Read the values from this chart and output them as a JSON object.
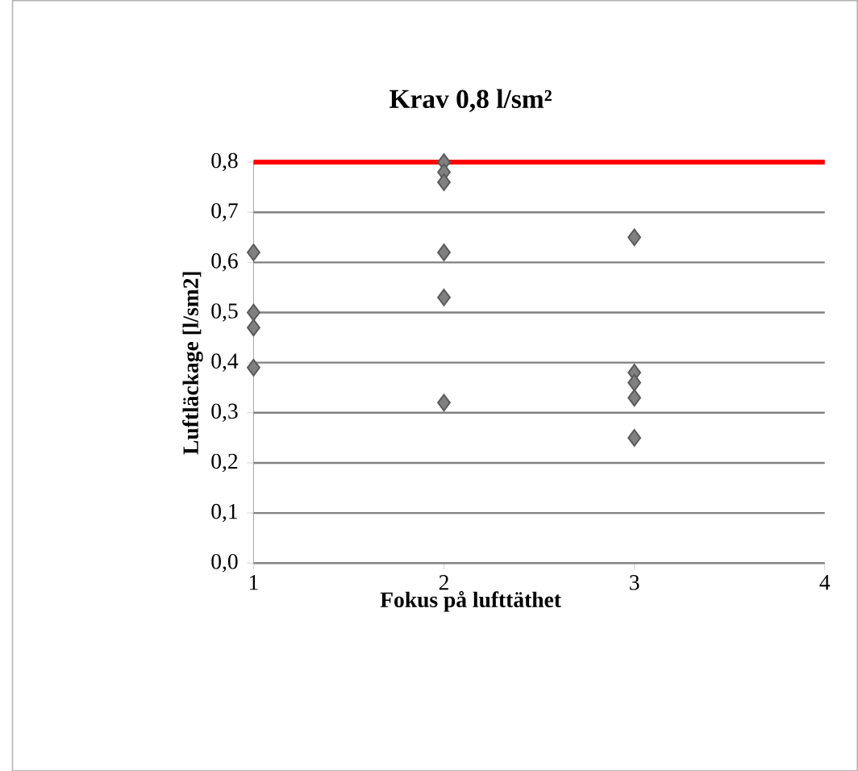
{
  "chart_data": {
    "type": "scatter",
    "title": "Krav 0,8 l/sm²",
    "xlabel": "Fokus på lufttäthet",
    "ylabel": "Luftläckage [l/sm2]",
    "series": [
      {
        "color": "#808080",
        "x": [
          1,
          1,
          1,
          1,
          2,
          2,
          2,
          2,
          2,
          2,
          3,
          3,
          3,
          3,
          3
        ],
        "values": [
          0.62,
          0.5,
          0.47,
          0.39,
          0.8,
          0.78,
          0.76,
          0.62,
          0.53,
          0.32,
          0.65,
          0.38,
          0.36,
          0.33,
          0.25
        ]
      }
    ],
    "marker": "diamond",
    "grid": "y",
    "xlim": [
      1,
      4
    ],
    "xticks": [
      1,
      2,
      3,
      4
    ],
    "ylim": [
      0,
      0.8
    ],
    "yticks": [
      {
        "value": 0,
        "label": "0,0"
      },
      {
        "value": 0.1,
        "label": "0,1"
      },
      {
        "value": 0.2,
        "label": "0,2"
      },
      {
        "value": 0.3,
        "label": "0,3"
      },
      {
        "value": 0.4,
        "label": "0,4"
      },
      {
        "value": 0.5,
        "label": "0,5"
      },
      {
        "value": 0.6,
        "label": "0,6"
      },
      {
        "value": 0.7,
        "label": "0,7"
      },
      {
        "value": 0.8,
        "label": "0,8"
      }
    ],
    "ref_lines": [
      {
        "axis": "y",
        "value": 0.8,
        "color": "#ff0000"
      }
    ]
  }
}
